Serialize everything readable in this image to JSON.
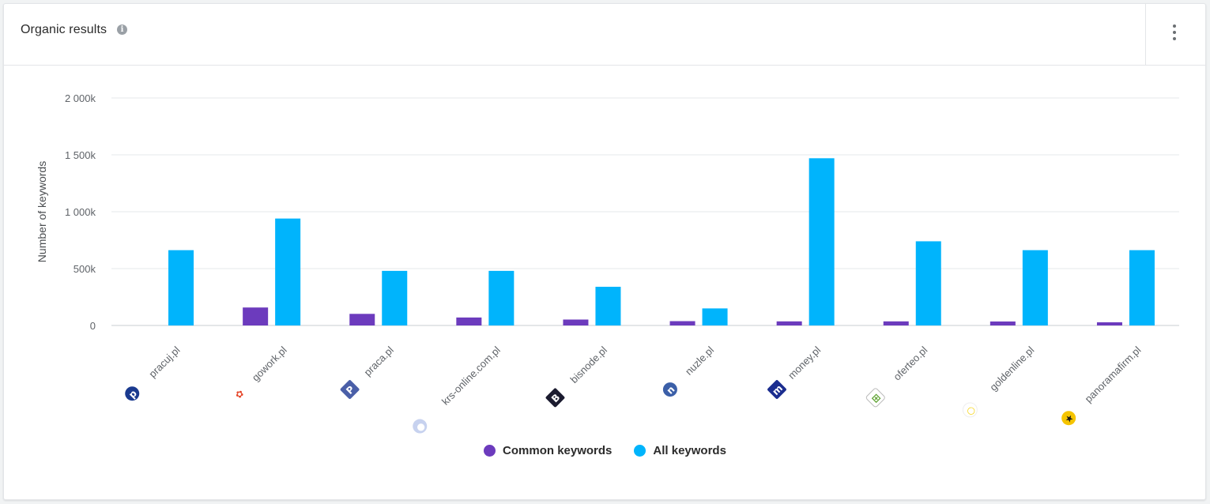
{
  "widget": {
    "title": "Organic results",
    "info_icon": "info-icon",
    "menu_icon": "more-vertical-icon"
  },
  "colors": {
    "common": "#6c3bbd",
    "all": "#00b4fc",
    "grid": "#e6e8eb",
    "axis_text": "#5f6368"
  },
  "chart_data": {
    "type": "bar",
    "ylabel": "Number of keywords",
    "ylim": [
      0,
      2000000
    ],
    "yticks": [
      {
        "value": 0,
        "label": "0"
      },
      {
        "value": 500000,
        "label": "500k"
      },
      {
        "value": 1000000,
        "label": "1 000k"
      },
      {
        "value": 1500000,
        "label": "1 500k"
      },
      {
        "value": 2000000,
        "label": "2 000k"
      }
    ],
    "grid": true,
    "legend_position": "bottom-center",
    "categories": [
      "pracuj.pl",
      "gowork.pl",
      "praca.pl",
      "krs-online.com.pl",
      "bisnode.pl",
      "nuzle.pl",
      "money.pl",
      "oferteo.pl",
      "goldenline.pl",
      "panoramafirm.pl"
    ],
    "category_icons": [
      "pracuj-logo-icon",
      "gowork-logo-icon",
      "praca-logo-icon",
      "krs-online-logo-icon",
      "bisnode-logo-icon",
      "nuzle-logo-icon",
      "money-logo-icon",
      "oferteo-logo-icon",
      "goldenline-logo-icon",
      "panoramafirm-logo-icon"
    ],
    "series": [
      {
        "name": "Common keywords",
        "values": [
          0,
          158000,
          102000,
          70000,
          52000,
          38000,
          36000,
          36000,
          35000,
          28000
        ]
      },
      {
        "name": "All keywords",
        "values": [
          662000,
          940000,
          480000,
          480000,
          340000,
          150000,
          1470000,
          740000,
          662000,
          662000
        ]
      }
    ]
  }
}
